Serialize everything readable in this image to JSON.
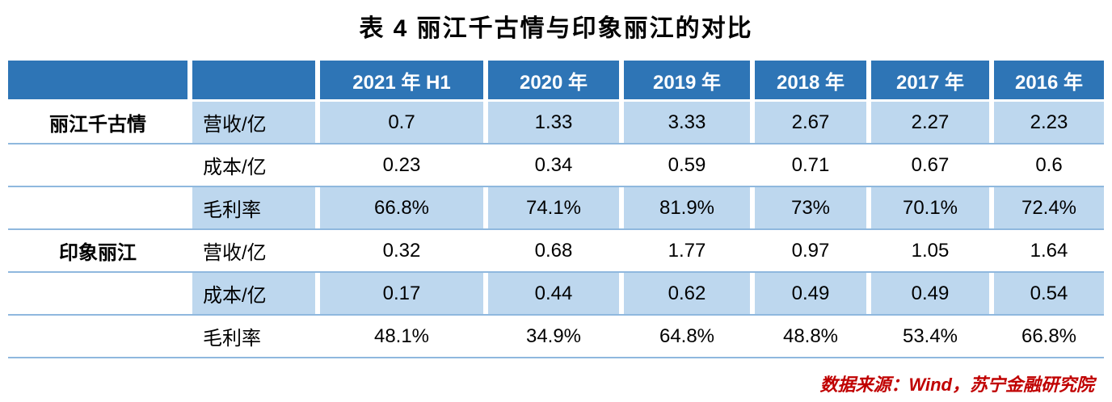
{
  "title": "表 4  丽江千古情与印象丽江的对比",
  "source_note": "数据来源：Wind，苏宁金融研究院",
  "colors": {
    "header_bg": "#2E75B6",
    "row_alt_bg": "#BDD7EE",
    "row_plain_bg": "#FFFFFF",
    "group_col_bg": "#FFFFFF",
    "grid_line": "#8FB8DE",
    "header_text": "#FFFFFF",
    "body_text": "#000000",
    "source_text": "#C00000"
  },
  "chart_data": {
    "type": "table",
    "title": "表 4  丽江千古情与印象丽江的对比",
    "columns": [
      "",
      "",
      "2021 年 H1",
      "2020 年",
      "2019 年",
      "2018 年",
      "2017 年",
      "2016 年"
    ],
    "row_groups": [
      {
        "group": "丽江千古情",
        "rows": [
          {
            "metric": "营收/亿",
            "values": [
              "0.7",
              "1.33",
              "3.33",
              "2.67",
              "2.27",
              "2.23"
            ]
          },
          {
            "metric": "成本/亿",
            "values": [
              "0.23",
              "0.34",
              "0.59",
              "0.71",
              "0.67",
              "0.6"
            ]
          },
          {
            "metric": "毛利率",
            "values": [
              "66.8%",
              "74.1%",
              "81.9%",
              "73%",
              "70.1%",
              "72.4%"
            ]
          }
        ]
      },
      {
        "group": "印象丽江",
        "rows": [
          {
            "metric": "营收/亿",
            "values": [
              "0.32",
              "0.68",
              "1.77",
              "0.97",
              "1.05",
              "1.64"
            ]
          },
          {
            "metric": "成本/亿",
            "values": [
              "0.17",
              "0.44",
              "0.62",
              "0.49",
              "0.49",
              "0.54"
            ]
          },
          {
            "metric": "毛利率",
            "values": [
              "48.1%",
              "34.9%",
              "64.8%",
              "48.8%",
              "53.4%",
              "66.8%"
            ]
          }
        ]
      }
    ],
    "layout": {
      "grid": true,
      "legend": "none",
      "alternating_rows": true
    }
  }
}
